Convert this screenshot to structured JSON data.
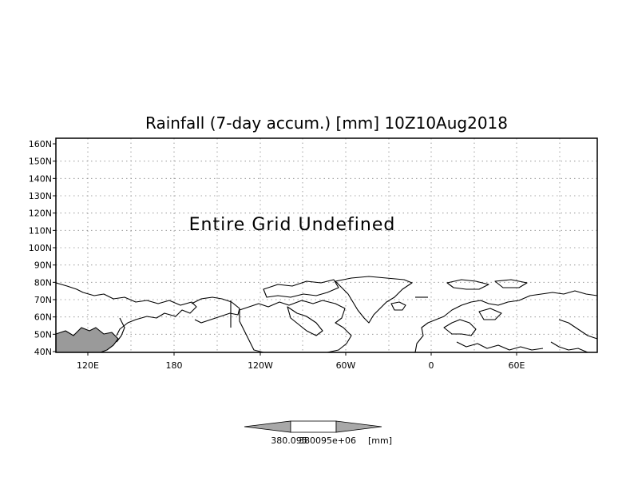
{
  "title": "Rainfall (7-day accum.) [mm] 10Z10Aug2018",
  "message": "Entire Grid Undefined",
  "y_ticks": [
    "160N",
    "150N",
    "140N",
    "130N",
    "120N",
    "110N",
    "100N",
    "90N",
    "80N",
    "70N",
    "60N",
    "50N",
    "40N"
  ],
  "x_ticks": [
    "120E",
    "180",
    "120W",
    "60W",
    "0",
    "60E"
  ],
  "colorbar": {
    "left_label": "380.095",
    "center_label": "380095e+06",
    "unit_label": "[mm]"
  },
  "colors": {
    "frame": "#000000",
    "grid": "#8a8a8a",
    "land_fill_gray": "#9a9a9a",
    "colorbar_gray": "#a8a8a8"
  },
  "axes": {
    "lat_range": [
      40,
      165
    ],
    "lon_range_description": "approx. 100E eastward through 180 to 100E",
    "grid": true
  }
}
